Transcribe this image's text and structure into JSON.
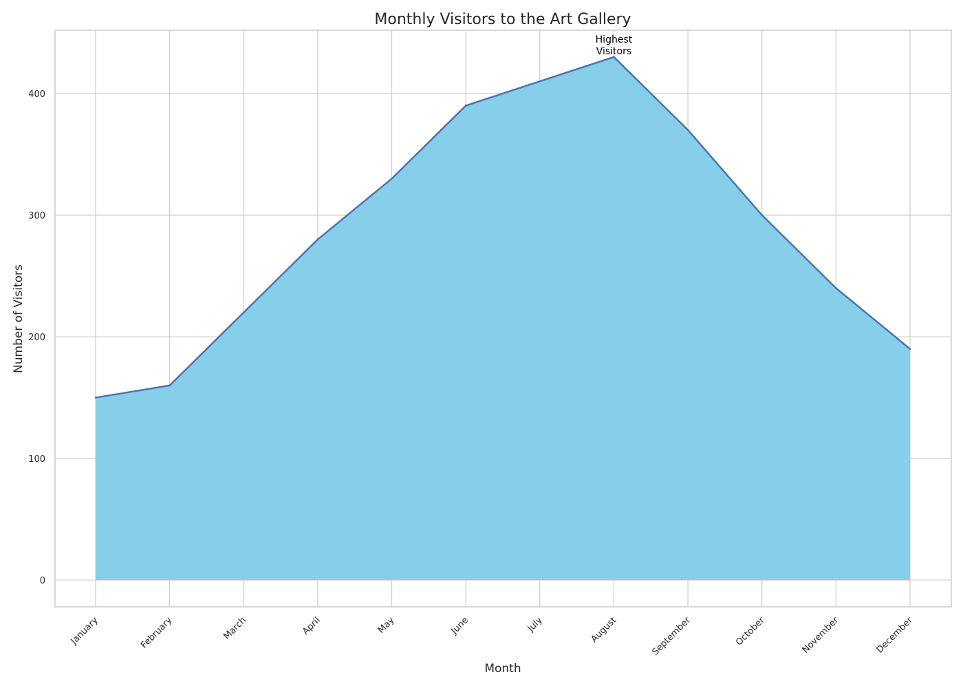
{
  "chart_data": {
    "type": "area",
    "title": "Monthly Visitors to the Art Gallery",
    "xlabel": "Month",
    "ylabel": "Number of Visitors",
    "categories": [
      "January",
      "February",
      "March",
      "April",
      "May",
      "June",
      "July",
      "August",
      "September",
      "October",
      "November",
      "December"
    ],
    "values": [
      150,
      160,
      220,
      280,
      330,
      390,
      410,
      430,
      370,
      300,
      240,
      190
    ],
    "ylim": [
      -22,
      452
    ],
    "yticks": [
      0,
      100,
      200,
      300,
      400
    ],
    "grid": true,
    "annotation": {
      "category": "August",
      "value": 430,
      "lines": [
        "Highest",
        "Visitors"
      ]
    },
    "colors": {
      "fill": "#87ceeb",
      "line": "#4c72b0",
      "grid": "#cccccc",
      "frame": "#cccccc"
    }
  }
}
